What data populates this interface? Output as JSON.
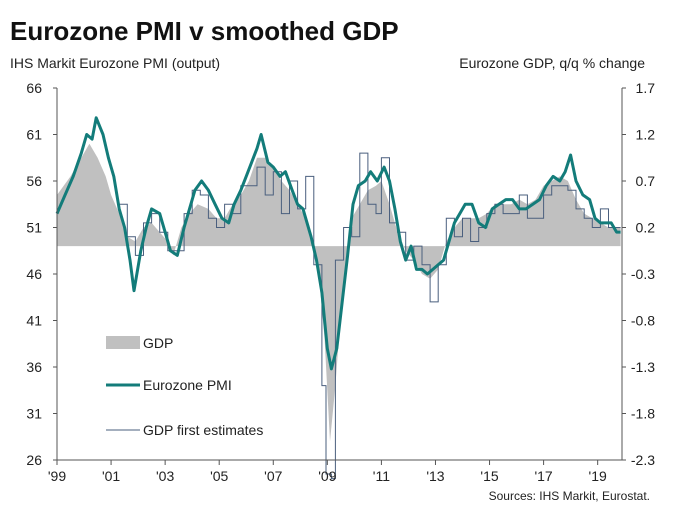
{
  "chart_data": {
    "type": "line",
    "title": "Eurozone PMI v smoothed GDP",
    "left_axis_label": "IHS Markit Eurozone PMI (output)",
    "right_axis_label": "Eurozone GDP, q/q % change",
    "source": "Sources: IHS Markit, Eurostat.",
    "left_ylim": [
      26,
      66
    ],
    "right_ylim": [
      -2.3,
      1.7
    ],
    "left_ticks": [
      "66",
      "61",
      "56",
      "51",
      "46",
      "41",
      "36",
      "31",
      "26"
    ],
    "right_ticks": [
      "1.7",
      "1.2",
      "0.7",
      "0.2",
      "-0.3",
      "-0.8",
      "-1.3",
      "-1.8",
      "-2.3"
    ],
    "x_ticks": [
      "'99",
      "'01",
      "'03",
      "'05",
      "'07",
      "'09",
      "'11",
      "'13",
      "'15",
      "'17",
      "'19"
    ],
    "x_tick_years": [
      1999,
      2001,
      2003,
      2005,
      2007,
      2009,
      2011,
      2013,
      2015,
      2017,
      2019
    ],
    "xlim": [
      1999,
      2019.9
    ],
    "grid": false,
    "legend_position": "bottom-left",
    "colors": {
      "gdp": "#c0c0c0",
      "pmi": "#137c7a",
      "first": "#4a5f7e"
    },
    "series": [
      {
        "name": "GDP",
        "kind": "area",
        "axis": "right",
        "points": [
          [
            1999.0,
            0.55
          ],
          [
            1999.5,
            0.75
          ],
          [
            1999.9,
            0.95
          ],
          [
            2000.2,
            1.1
          ],
          [
            2000.5,
            0.95
          ],
          [
            2000.8,
            0.75
          ],
          [
            2001.0,
            0.55
          ],
          [
            2001.3,
            0.35
          ],
          [
            2001.6,
            0.1
          ],
          [
            2001.9,
            0.05
          ],
          [
            2002.2,
            0.2
          ],
          [
            2002.5,
            0.25
          ],
          [
            2002.8,
            0.15
          ],
          [
            2003.1,
            0.05
          ],
          [
            2003.3,
            -0.1
          ],
          [
            2003.6,
            0.2
          ],
          [
            2003.9,
            0.35
          ],
          [
            2004.2,
            0.45
          ],
          [
            2004.6,
            0.4
          ],
          [
            2004.9,
            0.3
          ],
          [
            2005.2,
            0.3
          ],
          [
            2005.5,
            0.45
          ],
          [
            2005.8,
            0.55
          ],
          [
            2006.1,
            0.7
          ],
          [
            2006.4,
            0.95
          ],
          [
            2006.7,
            0.95
          ],
          [
            2007.0,
            0.85
          ],
          [
            2007.3,
            0.7
          ],
          [
            2007.6,
            0.6
          ],
          [
            2007.9,
            0.45
          ],
          [
            2008.2,
            0.3
          ],
          [
            2008.5,
            0.0
          ],
          [
            2008.7,
            -0.35
          ],
          [
            2008.9,
            -1.0
          ],
          [
            2009.1,
            -2.1
          ],
          [
            2009.3,
            -1.5
          ],
          [
            2009.5,
            -0.7
          ],
          [
            2009.7,
            -0.1
          ],
          [
            2009.9,
            0.3
          ],
          [
            2010.2,
            0.45
          ],
          [
            2010.5,
            0.6
          ],
          [
            2010.8,
            0.65
          ],
          [
            2011.0,
            0.7
          ],
          [
            2011.3,
            0.45
          ],
          [
            2011.6,
            0.15
          ],
          [
            2011.9,
            -0.05
          ],
          [
            2012.2,
            -0.15
          ],
          [
            2012.5,
            -0.3
          ],
          [
            2012.8,
            -0.35
          ],
          [
            2013.1,
            -0.25
          ],
          [
            2013.4,
            0.05
          ],
          [
            2013.7,
            0.2
          ],
          [
            2014.0,
            0.3
          ],
          [
            2014.3,
            0.3
          ],
          [
            2014.6,
            0.3
          ],
          [
            2014.9,
            0.35
          ],
          [
            2015.2,
            0.45
          ],
          [
            2015.5,
            0.45
          ],
          [
            2015.8,
            0.45
          ],
          [
            2016.1,
            0.5
          ],
          [
            2016.4,
            0.45
          ],
          [
            2016.7,
            0.5
          ],
          [
            2017.0,
            0.65
          ],
          [
            2017.3,
            0.7
          ],
          [
            2017.6,
            0.75
          ],
          [
            2017.9,
            0.7
          ],
          [
            2018.2,
            0.5
          ],
          [
            2018.5,
            0.35
          ],
          [
            2018.8,
            0.3
          ],
          [
            2019.1,
            0.25
          ],
          [
            2019.4,
            0.2
          ],
          [
            2019.7,
            0.2
          ],
          [
            2019.85,
            0.2
          ]
        ]
      },
      {
        "name": "Eurozone PMI",
        "kind": "line",
        "axis": "left",
        "points": [
          [
            1999.0,
            52.5
          ],
          [
            1999.3,
            54.5
          ],
          [
            1999.6,
            56.5
          ],
          [
            1999.9,
            59.0
          ],
          [
            2000.1,
            61.0
          ],
          [
            2000.3,
            60.5
          ],
          [
            2000.45,
            62.8
          ],
          [
            2000.7,
            61.0
          ],
          [
            2000.9,
            58.5
          ],
          [
            2001.1,
            56.5
          ],
          [
            2001.3,
            53.0
          ],
          [
            2001.5,
            51.0
          ],
          [
            2001.7,
            47.5
          ],
          [
            2001.85,
            44.2
          ],
          [
            2002.1,
            48.5
          ],
          [
            2002.3,
            51.0
          ],
          [
            2002.5,
            53.0
          ],
          [
            2002.8,
            52.5
          ],
          [
            2003.0,
            50.5
          ],
          [
            2003.2,
            48.5
          ],
          [
            2003.45,
            48.0
          ],
          [
            2003.7,
            51.0
          ],
          [
            2003.9,
            53.0
          ],
          [
            2004.1,
            55.0
          ],
          [
            2004.35,
            56.0
          ],
          [
            2004.6,
            55.0
          ],
          [
            2004.85,
            53.5
          ],
          [
            2005.1,
            52.0
          ],
          [
            2005.35,
            51.5
          ],
          [
            2005.55,
            53.5
          ],
          [
            2005.8,
            55.0
          ],
          [
            2006.0,
            56.5
          ],
          [
            2006.2,
            58.0
          ],
          [
            2006.4,
            59.5
          ],
          [
            2006.55,
            61.0
          ],
          [
            2006.8,
            58.0
          ],
          [
            2007.0,
            57.5
          ],
          [
            2007.25,
            56.5
          ],
          [
            2007.45,
            57.0
          ],
          [
            2007.7,
            55.0
          ],
          [
            2007.9,
            53.5
          ],
          [
            2008.1,
            53.0
          ],
          [
            2008.4,
            50.0
          ],
          [
            2008.6,
            47.5
          ],
          [
            2008.8,
            44.0
          ],
          [
            2009.0,
            38.0
          ],
          [
            2009.15,
            35.8
          ],
          [
            2009.35,
            38.0
          ],
          [
            2009.55,
            43.0
          ],
          [
            2009.75,
            48.0
          ],
          [
            2009.95,
            53.5
          ],
          [
            2010.15,
            55.5
          ],
          [
            2010.4,
            56.0
          ],
          [
            2010.6,
            57.0
          ],
          [
            2010.85,
            56.0
          ],
          [
            2011.1,
            57.5
          ],
          [
            2011.3,
            56.0
          ],
          [
            2011.5,
            53.0
          ],
          [
            2011.7,
            49.5
          ],
          [
            2011.9,
            47.5
          ],
          [
            2012.1,
            49.0
          ],
          [
            2012.3,
            46.5
          ],
          [
            2012.5,
            46.5
          ],
          [
            2012.7,
            46.0
          ],
          [
            2012.9,
            46.5
          ],
          [
            2013.1,
            47.0
          ],
          [
            2013.3,
            47.5
          ],
          [
            2013.5,
            49.5
          ],
          [
            2013.7,
            51.5
          ],
          [
            2013.9,
            52.5
          ],
          [
            2014.1,
            53.5
          ],
          [
            2014.35,
            53.5
          ],
          [
            2014.6,
            51.5
          ],
          [
            2014.85,
            51.0
          ],
          [
            2015.1,
            53.0
          ],
          [
            2015.35,
            53.5
          ],
          [
            2015.6,
            54.0
          ],
          [
            2015.85,
            54.0
          ],
          [
            2016.1,
            53.0
          ],
          [
            2016.35,
            53.0
          ],
          [
            2016.6,
            53.5
          ],
          [
            2016.85,
            54.0
          ],
          [
            2017.1,
            55.5
          ],
          [
            2017.35,
            56.5
          ],
          [
            2017.6,
            56.0
          ],
          [
            2017.8,
            57.0
          ],
          [
            2018.0,
            58.8
          ],
          [
            2018.2,
            56.0
          ],
          [
            2018.45,
            54.5
          ],
          [
            2018.7,
            54.0
          ],
          [
            2018.9,
            52.0
          ],
          [
            2019.1,
            51.5
          ],
          [
            2019.3,
            51.5
          ],
          [
            2019.5,
            51.5
          ],
          [
            2019.7,
            50.5
          ],
          [
            2019.85,
            50.5
          ]
        ]
      },
      {
        "name": "GDP first estimates",
        "kind": "step",
        "axis": "right",
        "points": [
          [
            2001.3,
            0.45
          ],
          [
            2001.6,
            0.1
          ],
          [
            2001.9,
            -0.1
          ],
          [
            2002.2,
            0.25
          ],
          [
            2002.5,
            0.35
          ],
          [
            2002.8,
            0.15
          ],
          [
            2003.1,
            -0.05
          ],
          [
            2003.4,
            -0.05
          ],
          [
            2003.7,
            0.35
          ],
          [
            2004.0,
            0.6
          ],
          [
            2004.3,
            0.55
          ],
          [
            2004.6,
            0.3
          ],
          [
            2004.9,
            0.2
          ],
          [
            2005.2,
            0.45
          ],
          [
            2005.5,
            0.35
          ],
          [
            2005.8,
            0.65
          ],
          [
            2006.1,
            0.65
          ],
          [
            2006.4,
            0.85
          ],
          [
            2006.7,
            0.55
          ],
          [
            2007.0,
            0.8
          ],
          [
            2007.3,
            0.35
          ],
          [
            2007.6,
            0.7
          ],
          [
            2007.9,
            0.4
          ],
          [
            2008.2,
            0.75
          ],
          [
            2008.5,
            -0.2
          ],
          [
            2008.8,
            -1.5
          ],
          [
            2008.95,
            -2.45
          ],
          [
            2009.15,
            -2.5
          ],
          [
            2009.3,
            -0.15
          ],
          [
            2009.6,
            0.2
          ],
          [
            2009.9,
            0.1
          ],
          [
            2010.2,
            1.0
          ],
          [
            2010.5,
            0.45
          ],
          [
            2010.8,
            0.35
          ],
          [
            2011.0,
            0.95
          ],
          [
            2011.3,
            0.25
          ],
          [
            2011.6,
            0.15
          ],
          [
            2011.9,
            -0.15
          ],
          [
            2012.2,
            0.0
          ],
          [
            2012.5,
            -0.2
          ],
          [
            2012.8,
            -0.6
          ],
          [
            2013.1,
            -0.2
          ],
          [
            2013.4,
            0.3
          ],
          [
            2013.7,
            0.1
          ],
          [
            2014.0,
            0.3
          ],
          [
            2014.3,
            0.05
          ],
          [
            2014.6,
            0.2
          ],
          [
            2014.9,
            0.35
          ],
          [
            2015.2,
            0.45
          ],
          [
            2015.5,
            0.35
          ],
          [
            2015.8,
            0.35
          ],
          [
            2016.1,
            0.55
          ],
          [
            2016.4,
            0.3
          ],
          [
            2016.7,
            0.3
          ],
          [
            2017.0,
            0.55
          ],
          [
            2017.3,
            0.65
          ],
          [
            2017.6,
            0.65
          ],
          [
            2017.9,
            0.6
          ],
          [
            2018.2,
            0.4
          ],
          [
            2018.5,
            0.3
          ],
          [
            2018.8,
            0.2
          ],
          [
            2019.1,
            0.4
          ],
          [
            2019.4,
            0.2
          ],
          [
            2019.7,
            0.2
          ],
          [
            2019.85,
            0.2
          ]
        ]
      }
    ],
    "legend": [
      {
        "key": "gdp",
        "label": "GDP"
      },
      {
        "key": "pmi",
        "label": "Eurozone PMI"
      },
      {
        "key": "first",
        "label": "GDP first estimates"
      }
    ]
  }
}
